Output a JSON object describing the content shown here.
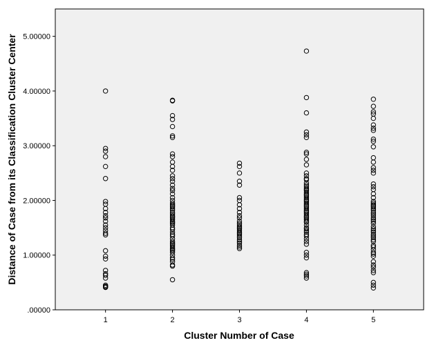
{
  "chart_data": {
    "type": "scatter",
    "title": "",
    "xlabel": "Cluster Number of Case",
    "ylabel": "Distance of Case from its Classification Cluster Center",
    "x_ticks": [
      "1",
      "2",
      "3",
      "4",
      "5"
    ],
    "y_ticks": [
      ".00000",
      "1.00000",
      "2.00000",
      "3.00000",
      "4.00000",
      "5.00000"
    ],
    "xlim": [
      0.25,
      5.75
    ],
    "ylim": [
      0,
      5.5
    ],
    "grid": false,
    "plot_background": "#f0f0f0",
    "marker_color": "#000000",
    "series": [
      {
        "x": [
          1,
          1,
          1,
          1,
          1,
          1,
          1,
          1,
          1,
          1,
          1,
          1,
          1,
          1,
          1,
          1,
          1,
          1,
          1,
          1,
          1,
          1,
          1,
          1,
          1,
          1,
          1,
          1,
          1
        ],
        "y": [
          4.0,
          2.95,
          2.9,
          2.8,
          2.62,
          2.4,
          1.98,
          1.93,
          1.85,
          1.78,
          1.72,
          1.68,
          1.62,
          1.55,
          1.5,
          1.45,
          1.4,
          1.37,
          1.08,
          0.98,
          0.93,
          0.72,
          0.66,
          0.63,
          0.58,
          0.45,
          0.43,
          0.42,
          0.41
        ]
      },
      {
        "x": [
          2,
          2,
          2,
          2,
          2,
          2,
          2,
          2,
          2,
          2,
          2,
          2,
          2,
          2,
          2,
          2,
          2,
          2,
          2,
          2,
          2,
          2,
          2,
          2,
          2,
          2,
          2,
          2,
          2,
          2,
          2,
          2,
          2,
          2,
          2,
          2,
          2,
          2,
          2,
          2,
          2,
          2,
          2,
          2,
          2,
          2,
          2,
          2,
          2,
          2,
          2,
          2,
          2,
          2,
          2,
          2,
          2,
          2,
          2
        ],
        "y": [
          3.83,
          3.82,
          3.55,
          3.48,
          3.35,
          3.18,
          3.15,
          2.85,
          2.8,
          2.7,
          2.62,
          2.55,
          2.45,
          2.4,
          2.22,
          2.18,
          2.12,
          2.05,
          2.0,
          1.95,
          1.9,
          1.85,
          1.82,
          1.78,
          1.75,
          1.72,
          1.7,
          1.65,
          1.62,
          1.6,
          1.55,
          1.5,
          1.47,
          1.42,
          1.38,
          1.3,
          1.25,
          1.22,
          1.2,
          1.18,
          1.15,
          1.12,
          1.1,
          1.08,
          1.05,
          1.0,
          0.95,
          0.92,
          0.88,
          0.82,
          0.8,
          0.55,
          1.68,
          1.58,
          2.28,
          2.35,
          1.92,
          1.88,
          1.35
        ]
      },
      {
        "x": [
          3,
          3,
          3,
          3,
          3,
          3,
          3,
          3,
          3,
          3,
          3,
          3,
          3,
          3,
          3,
          3,
          3,
          3,
          3,
          3,
          3,
          3,
          3,
          3,
          3,
          3,
          3,
          3,
          3,
          3
        ],
        "y": [
          2.68,
          2.62,
          2.5,
          2.35,
          2.28,
          2.05,
          2.0,
          1.92,
          1.85,
          1.78,
          1.72,
          1.68,
          1.62,
          1.58,
          1.55,
          1.52,
          1.5,
          1.48,
          1.45,
          1.42,
          1.4,
          1.38,
          1.35,
          1.32,
          1.28,
          1.25,
          1.22,
          1.18,
          1.15,
          1.12
        ]
      },
      {
        "x": [
          4,
          4,
          4,
          4,
          4,
          4,
          4,
          4,
          4,
          4,
          4,
          4,
          4,
          4,
          4,
          4,
          4,
          4,
          4,
          4,
          4,
          4,
          4,
          4,
          4,
          4,
          4,
          4,
          4,
          4,
          4,
          4,
          4,
          4,
          4,
          4,
          4,
          4,
          4,
          4,
          4,
          4,
          4,
          4,
          4,
          4,
          4,
          4,
          4,
          4,
          4,
          4,
          4,
          4,
          4,
          4,
          4,
          4,
          4,
          4
        ],
        "y": [
          4.73,
          3.88,
          3.6,
          3.25,
          3.2,
          3.15,
          2.88,
          2.85,
          2.75,
          2.65,
          2.5,
          2.45,
          2.38,
          2.32,
          2.28,
          2.25,
          2.22,
          2.2,
          2.18,
          2.15,
          2.12,
          2.1,
          2.05,
          2.02,
          2.0,
          1.98,
          1.95,
          1.92,
          1.88,
          1.85,
          1.8,
          1.75,
          1.7,
          1.65,
          1.6,
          1.55,
          1.5,
          1.45,
          1.42,
          1.38,
          1.35,
          1.3,
          1.25,
          1.2,
          1.05,
          1.0,
          0.95,
          0.68,
          0.65,
          0.62,
          0.58,
          2.4,
          1.78,
          1.68,
          1.48,
          1.62,
          2.08,
          1.9,
          1.72,
          1.82
        ]
      },
      {
        "x": [
          5,
          5,
          5,
          5,
          5,
          5,
          5,
          5,
          5,
          5,
          5,
          5,
          5,
          5,
          5,
          5,
          5,
          5,
          5,
          5,
          5,
          5,
          5,
          5,
          5,
          5,
          5,
          5,
          5,
          5,
          5,
          5,
          5,
          5,
          5,
          5,
          5,
          5,
          5,
          5,
          5,
          5,
          5,
          5,
          5,
          5,
          5,
          5,
          5,
          5,
          5,
          5,
          5,
          5,
          5,
          5,
          5,
          5
        ],
        "y": [
          3.85,
          3.72,
          3.62,
          3.58,
          3.5,
          3.38,
          3.32,
          3.28,
          3.12,
          3.08,
          2.98,
          2.78,
          2.7,
          2.6,
          2.55,
          2.5,
          2.3,
          2.25,
          2.12,
          2.05,
          1.98,
          1.95,
          1.9,
          1.85,
          1.82,
          1.78,
          1.75,
          1.72,
          1.68,
          1.62,
          1.58,
          1.52,
          1.48,
          1.42,
          1.38,
          1.35,
          1.32,
          1.28,
          1.25,
          1.18,
          1.15,
          1.1,
          1.05,
          1.02,
          0.98,
          0.88,
          0.82,
          0.78,
          0.72,
          0.68,
          0.5,
          0.45,
          0.4,
          2.2,
          1.88,
          1.65,
          1.45,
          1.92
        ]
      }
    ]
  }
}
